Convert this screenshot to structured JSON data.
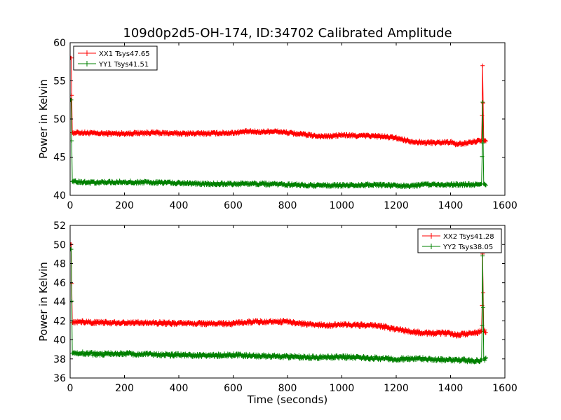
{
  "figure": {
    "title": "109d0p2d5-OH-174, ID:34702 Calibrated Amplitude"
  },
  "colors": {
    "xx": "#ff0000",
    "yy": "#008000"
  },
  "chart_data": [
    {
      "type": "line",
      "ylabel": "Power in Kelvin",
      "xlabel": "",
      "xlim": [
        0,
        1600
      ],
      "ylim": [
        40,
        60
      ],
      "xticks": [
        0,
        200,
        400,
        600,
        800,
        1000,
        1200,
        1400,
        1600
      ],
      "yticks": [
        40,
        45,
        50,
        55,
        60
      ],
      "legend_position": "top-left",
      "series": [
        {
          "name": "XX1 Tsys47.65",
          "color": "#ff0000",
          "points": [
            [
              0,
              58
            ],
            [
              4,
              58
            ],
            [
              8,
              48.2
            ],
            [
              50,
              48.2
            ],
            [
              100,
              48.1
            ],
            [
              200,
              48.1
            ],
            [
              300,
              48.2
            ],
            [
              400,
              48.1
            ],
            [
              500,
              48.1
            ],
            [
              600,
              48.2
            ],
            [
              650,
              48.35
            ],
            [
              700,
              48.3
            ],
            [
              750,
              48.4
            ],
            [
              800,
              48.2
            ],
            [
              850,
              48
            ],
            [
              900,
              47.8
            ],
            [
              950,
              47.7
            ],
            [
              1000,
              47.9
            ],
            [
              1050,
              47.8
            ],
            [
              1100,
              47.8
            ],
            [
              1150,
              47.7
            ],
            [
              1200,
              47.5
            ],
            [
              1250,
              47.1
            ],
            [
              1300,
              46.9
            ],
            [
              1350,
              46.9
            ],
            [
              1400,
              47
            ],
            [
              1420,
              46.7
            ],
            [
              1450,
              46.8
            ],
            [
              1500,
              47.1
            ],
            [
              1515,
              47.2
            ],
            [
              1518,
              57
            ],
            [
              1522,
              47.2
            ],
            [
              1530,
              47.2
            ]
          ]
        },
        {
          "name": "YY1 Tsys41.51",
          "color": "#008000",
          "points": [
            [
              0,
              52.5
            ],
            [
              4,
              52.5
            ],
            [
              8,
              41.8
            ],
            [
              50,
              41.7
            ],
            [
              100,
              41.7
            ],
            [
              200,
              41.75
            ],
            [
              300,
              41.7
            ],
            [
              400,
              41.6
            ],
            [
              500,
              41.5
            ],
            [
              600,
              41.5
            ],
            [
              700,
              41.5
            ],
            [
              800,
              41.4
            ],
            [
              900,
              41.3
            ],
            [
              1000,
              41.3
            ],
            [
              1100,
              41.35
            ],
            [
              1200,
              41.3
            ],
            [
              1250,
              41.2
            ],
            [
              1300,
              41.4
            ],
            [
              1400,
              41.4
            ],
            [
              1500,
              41.4
            ],
            [
              1515,
              41.5
            ],
            [
              1518,
              52.2
            ],
            [
              1522,
              41.5
            ],
            [
              1530,
              41.5
            ]
          ]
        }
      ]
    },
    {
      "type": "line",
      "ylabel": "Power in Kelvin",
      "xlabel": "Time (seconds)",
      "xlim": [
        0,
        1600
      ],
      "ylim": [
        36,
        52
      ],
      "xticks": [
        0,
        200,
        400,
        600,
        800,
        1000,
        1200,
        1400,
        1600
      ],
      "yticks": [
        36,
        38,
        40,
        42,
        44,
        46,
        48,
        50,
        52
      ],
      "legend_position": "top-right",
      "series": [
        {
          "name": "XX2 Tsys41.28",
          "color": "#ff0000",
          "points": [
            [
              0,
              50
            ],
            [
              4,
              50
            ],
            [
              8,
              41.8
            ],
            [
              50,
              41.9
            ],
            [
              100,
              41.8
            ],
            [
              200,
              41.8
            ],
            [
              300,
              41.8
            ],
            [
              400,
              41.7
            ],
            [
              500,
              41.7
            ],
            [
              600,
              41.7
            ],
            [
              650,
              41.85
            ],
            [
              700,
              41.9
            ],
            [
              750,
              41.95
            ],
            [
              800,
              41.9
            ],
            [
              850,
              41.7
            ],
            [
              900,
              41.6
            ],
            [
              950,
              41.5
            ],
            [
              1000,
              41.6
            ],
            [
              1050,
              41.55
            ],
            [
              1100,
              41.5
            ],
            [
              1150,
              41.4
            ],
            [
              1200,
              41.1
            ],
            [
              1250,
              40.9
            ],
            [
              1300,
              40.7
            ],
            [
              1350,
              40.7
            ],
            [
              1400,
              40.7
            ],
            [
              1420,
              40.5
            ],
            [
              1450,
              40.6
            ],
            [
              1500,
              40.8
            ],
            [
              1515,
              40.9
            ],
            [
              1518,
              49
            ],
            [
              1522,
              40.9
            ],
            [
              1530,
              40.9
            ]
          ]
        },
        {
          "name": "YY2 Tsys38.05",
          "color": "#008000",
          "points": [
            [
              0,
              49.5
            ],
            [
              4,
              49.5
            ],
            [
              8,
              38.6
            ],
            [
              50,
              38.6
            ],
            [
              100,
              38.5
            ],
            [
              200,
              38.55
            ],
            [
              300,
              38.5
            ],
            [
              400,
              38.4
            ],
            [
              500,
              38.35
            ],
            [
              600,
              38.4
            ],
            [
              700,
              38.3
            ],
            [
              800,
              38.25
            ],
            [
              900,
              38.15
            ],
            [
              1000,
              38.2
            ],
            [
              1100,
              38.1
            ],
            [
              1200,
              38
            ],
            [
              1300,
              38
            ],
            [
              1350,
              37.9
            ],
            [
              1400,
              37.9
            ],
            [
              1450,
              37.85
            ],
            [
              1500,
              37.8
            ],
            [
              1515,
              37.9
            ],
            [
              1518,
              48.8
            ],
            [
              1522,
              38
            ],
            [
              1530,
              38
            ]
          ]
        }
      ]
    }
  ]
}
